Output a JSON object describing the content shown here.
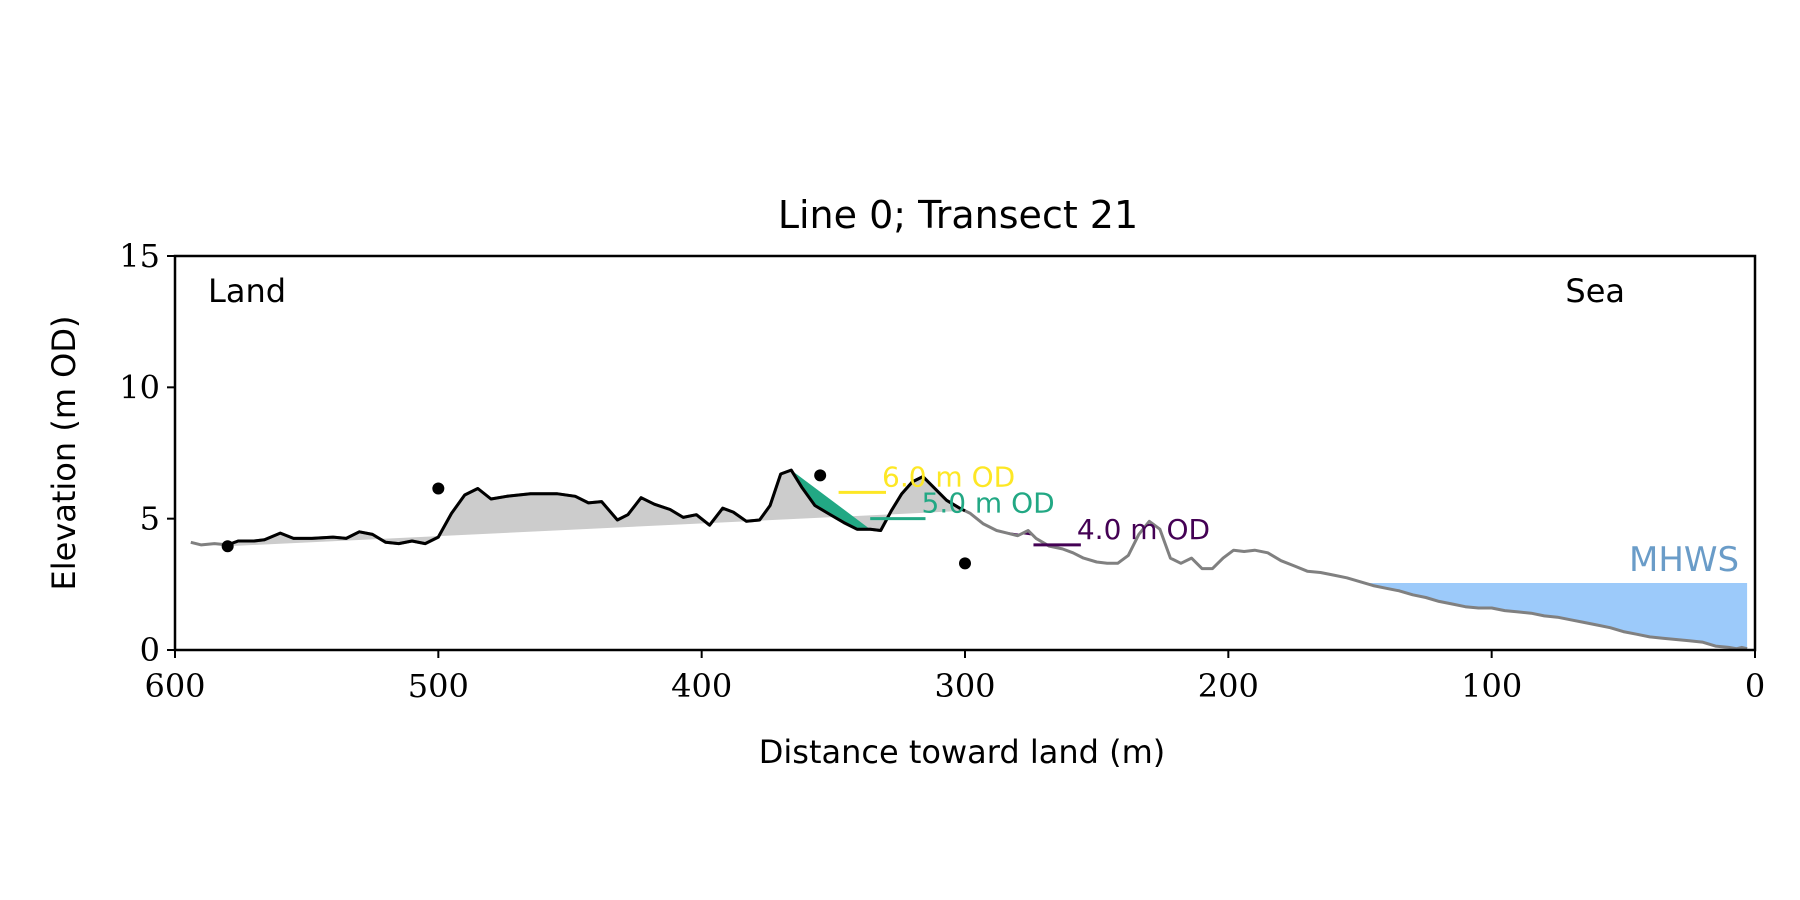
{
  "chart_data": {
    "type": "area",
    "title": "Line 0; Transect 21",
    "xlabel": "Distance toward land (m)",
    "ylabel": "Elevation (m OD)",
    "xlim": [
      600,
      0
    ],
    "ylim": [
      0,
      15
    ],
    "xticks": [
      "600",
      "500",
      "400",
      "300",
      "200",
      "100",
      "0"
    ],
    "yticks": [
      "0",
      "5",
      "10",
      "15"
    ],
    "grid": false,
    "left_annotation": "Land",
    "right_annotation": "Sea",
    "mhws": {
      "label": "MHWS",
      "elevation": 2.55,
      "x_start": 200,
      "x_end": 3,
      "color": "#9ccafa",
      "label_color": "#6a9cc8"
    },
    "profile": {
      "line_color": "#808080",
      "dune_line_color": "#000000",
      "dune_fill_color": "#cccccc",
      "points": [
        [
          594,
          4.1
        ],
        [
          590,
          4.0
        ],
        [
          585,
          4.05
        ],
        [
          580,
          4.0
        ],
        [
          576,
          4.15
        ],
        [
          570,
          4.15
        ],
        [
          566,
          4.2
        ],
        [
          560,
          4.45
        ],
        [
          555,
          4.25
        ],
        [
          548,
          4.25
        ],
        [
          540,
          4.3
        ],
        [
          535,
          4.25
        ],
        [
          530,
          4.5
        ],
        [
          525,
          4.4
        ],
        [
          520,
          4.1
        ],
        [
          515,
          4.05
        ],
        [
          510,
          4.15
        ],
        [
          505,
          4.05
        ],
        [
          500,
          4.3
        ],
        [
          495,
          5.2
        ],
        [
          490,
          5.9
        ],
        [
          485,
          6.15
        ],
        [
          480,
          5.75
        ],
        [
          474,
          5.85
        ],
        [
          465,
          5.95
        ],
        [
          455,
          5.95
        ],
        [
          448,
          5.85
        ],
        [
          443,
          5.6
        ],
        [
          438,
          5.65
        ],
        [
          432,
          4.95
        ],
        [
          428,
          5.15
        ],
        [
          423,
          5.8
        ],
        [
          418,
          5.55
        ],
        [
          412,
          5.35
        ],
        [
          407,
          5.05
        ],
        [
          402,
          5.15
        ],
        [
          397,
          4.75
        ],
        [
          392,
          5.4
        ],
        [
          388,
          5.25
        ],
        [
          383,
          4.9
        ],
        [
          378,
          4.95
        ],
        [
          374,
          5.5
        ],
        [
          370,
          6.7
        ],
        [
          366,
          6.85
        ],
        [
          362,
          6.2
        ],
        [
          357,
          5.5
        ],
        [
          352,
          5.2
        ],
        [
          346,
          4.85
        ],
        [
          341,
          4.6
        ],
        [
          336,
          4.6
        ],
        [
          332,
          4.55
        ],
        [
          328,
          5.3
        ],
        [
          324,
          5.95
        ],
        [
          320,
          6.4
        ],
        [
          316,
          6.6
        ],
        [
          312,
          6.2
        ],
        [
          307,
          5.7
        ],
        [
          302,
          5.4
        ],
        [
          298,
          5.2
        ],
        [
          293,
          4.8
        ],
        [
          288,
          4.55
        ],
        [
          284,
          4.45
        ],
        [
          280,
          4.35
        ],
        [
          276,
          4.55
        ],
        [
          273,
          4.25
        ],
        [
          268,
          3.95
        ],
        [
          263,
          3.85
        ],
        [
          259,
          3.7
        ],
        [
          255,
          3.5
        ],
        [
          250,
          3.35
        ],
        [
          246,
          3.3
        ],
        [
          242,
          3.3
        ],
        [
          238,
          3.6
        ],
        [
          234,
          4.4
        ],
        [
          230,
          4.9
        ],
        [
          226,
          4.6
        ],
        [
          222,
          3.5
        ],
        [
          218,
          3.3
        ],
        [
          214,
          3.5
        ],
        [
          210,
          3.1
        ],
        [
          206,
          3.1
        ],
        [
          202,
          3.5
        ],
        [
          198,
          3.8
        ],
        [
          194,
          3.75
        ],
        [
          190,
          3.8
        ],
        [
          185,
          3.7
        ],
        [
          180,
          3.4
        ],
        [
          175,
          3.2
        ],
        [
          170,
          3.0
        ],
        [
          165,
          2.95
        ],
        [
          160,
          2.85
        ],
        [
          155,
          2.75
        ],
        [
          150,
          2.6
        ],
        [
          145,
          2.45
        ],
        [
          140,
          2.35
        ],
        [
          135,
          2.25
        ],
        [
          130,
          2.1
        ],
        [
          125,
          2.0
        ],
        [
          120,
          1.85
        ],
        [
          115,
          1.75
        ],
        [
          110,
          1.65
        ],
        [
          105,
          1.6
        ],
        [
          100,
          1.6
        ],
        [
          95,
          1.5
        ],
        [
          90,
          1.45
        ],
        [
          85,
          1.4
        ],
        [
          80,
          1.3
        ],
        [
          75,
          1.25
        ],
        [
          70,
          1.15
        ],
        [
          65,
          1.05
        ],
        [
          60,
          0.95
        ],
        [
          55,
          0.85
        ],
        [
          50,
          0.7
        ],
        [
          45,
          0.6
        ],
        [
          40,
          0.5
        ],
        [
          35,
          0.45
        ],
        [
          30,
          0.4
        ],
        [
          25,
          0.35
        ],
        [
          20,
          0.3
        ],
        [
          15,
          0.15
        ],
        [
          10,
          0.1
        ],
        [
          7,
          0.05
        ],
        [
          5,
          0.1
        ],
        [
          3,
          0.05
        ]
      ]
    },
    "dune_base": {
      "toe_point": [
        580,
        3.95
      ],
      "heel_point": [
        300,
        3.3
      ],
      "crest_points": [
        [
          500,
          6.15
        ],
        [
          355,
          6.65
        ]
      ]
    },
    "levels": [
      {
        "label": "6.0 m OD",
        "elevation": 6.0,
        "color": "#fde725",
        "fill_x_start": 358,
        "fill_x_end": 348,
        "line_x_end": 330
      },
      {
        "label": "5.0 m OD",
        "elevation": 5.0,
        "color": "#22a884",
        "fill_x_start": 366,
        "fill_x_end": 336,
        "line_x_end": 315
      },
      {
        "label": "4.0 m OD",
        "elevation": 4.0,
        "color": "#440154",
        "fill_x_start": 288,
        "fill_x_end": 274,
        "line_x_end": 256
      }
    ]
  }
}
